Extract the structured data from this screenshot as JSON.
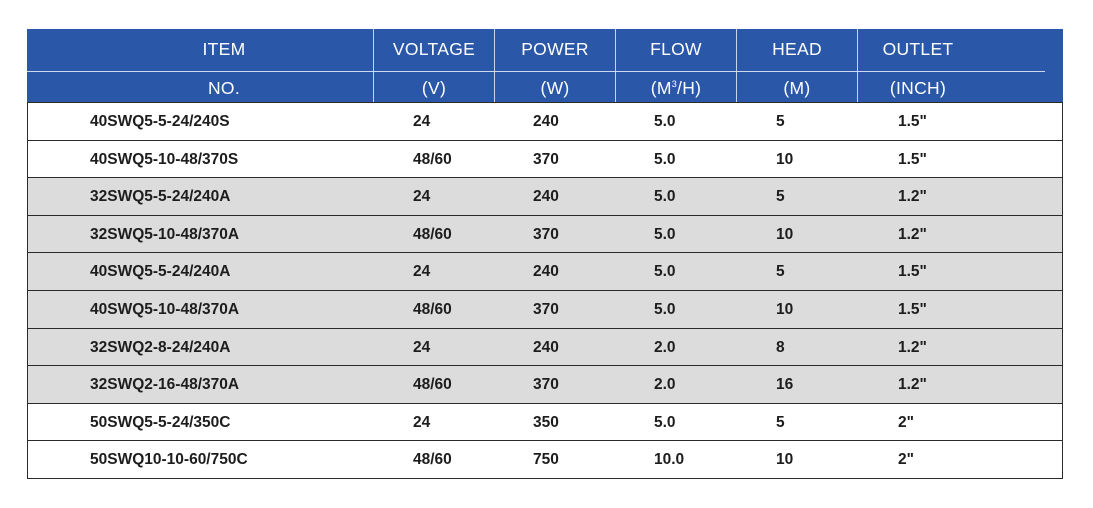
{
  "header": {
    "row1": [
      "ITEM",
      "VOLTAGE",
      "POWER",
      "FLOW",
      "HEAD",
      "OUTLET"
    ],
    "row2": [
      "NO.",
      "(V)",
      "(W)",
      "(M3/H)",
      "(M)",
      "(INCH)"
    ]
  },
  "rows": [
    {
      "item": "40SWQ5-5-24/240S",
      "voltage": "24",
      "power": "240",
      "flow": "5.0",
      "head": "5",
      "outlet": "1.5\"",
      "shade": false
    },
    {
      "item": "40SWQ5-10-48/370S",
      "voltage": "48/60",
      "power": "370",
      "flow": "5.0",
      "head": "10",
      "outlet": "1.5\"",
      "shade": false
    },
    {
      "item": "32SWQ5-5-24/240A",
      "voltage": "24",
      "power": "240",
      "flow": "5.0",
      "head": "5",
      "outlet": "1.2\"",
      "shade": true
    },
    {
      "item": "32SWQ5-10-48/370A",
      "voltage": "48/60",
      "power": "370",
      "flow": "5.0",
      "head": "10",
      "outlet": "1.2\"",
      "shade": true
    },
    {
      "item": "40SWQ5-5-24/240A",
      "voltage": "24",
      "power": "240",
      "flow": "5.0",
      "head": "5",
      "outlet": "1.5\"",
      "shade": true
    },
    {
      "item": "40SWQ5-10-48/370A",
      "voltage": "48/60",
      "power": "370",
      "flow": "5.0",
      "head": "10",
      "outlet": "1.5\"",
      "shade": true
    },
    {
      "item": "32SWQ2-8-24/240A",
      "voltage": "24",
      "power": "240",
      "flow": "2.0",
      "head": "8",
      "outlet": "1.2\"",
      "shade": true
    },
    {
      "item": "32SWQ2-16-48/370A",
      "voltage": "48/60",
      "power": "370",
      "flow": "2.0",
      "head": "16",
      "outlet": "1.2\"",
      "shade": true
    },
    {
      "item": "50SWQ5-5-24/350C",
      "voltage": "24",
      "power": "350",
      "flow": "5.0",
      "head": "5",
      "outlet": "2\"",
      "shade": false
    },
    {
      "item": "50SWQ10-10-60/750C",
      "voltage": "48/60",
      "power": "750",
      "flow": "10.0",
      "head": "10",
      "outlet": "2\"",
      "shade": false
    }
  ],
  "colors": {
    "header_bg": "#2b57a8",
    "shade": "#dcdcdc"
  }
}
